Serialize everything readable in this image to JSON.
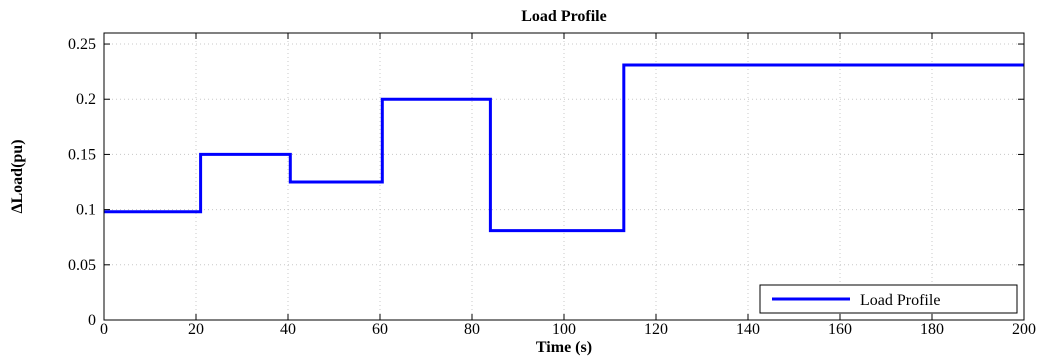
{
  "chart_data": {
    "type": "line",
    "title": "Load Profile",
    "xlabel": "Time (s)",
    "ylabel": "ΔLoad(pu)",
    "xlim": [
      0,
      200
    ],
    "ylim": [
      0,
      0.26
    ],
    "xticks": [
      0,
      20,
      40,
      60,
      80,
      100,
      120,
      140,
      160,
      180,
      200
    ],
    "xtick_labels": [
      "0",
      "20",
      "40",
      "60",
      "80",
      "100",
      "120",
      "140",
      "160",
      "180",
      "200"
    ],
    "yticks": [
      0,
      0.05,
      0.1,
      0.15,
      0.2,
      0.25
    ],
    "ytick_labels": [
      "0",
      "0.05",
      "0.1",
      "0.15",
      "0.2",
      "0.25"
    ],
    "grid": true,
    "legend_position": "bottom-right",
    "series": [
      {
        "name": "Load Profile",
        "color": "#0000ff",
        "x": [
          0,
          21,
          21,
          40.5,
          40.5,
          60.5,
          60.5,
          84,
          84,
          113,
          113,
          200
        ],
        "y": [
          0.098,
          0.098,
          0.15,
          0.15,
          0.125,
          0.125,
          0.2,
          0.2,
          0.081,
          0.081,
          0.231,
          0.231
        ]
      }
    ]
  }
}
